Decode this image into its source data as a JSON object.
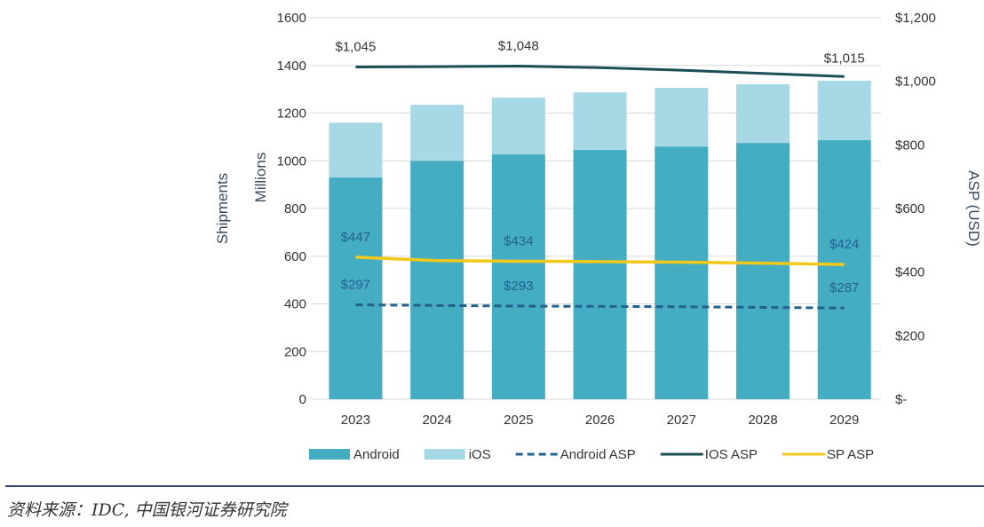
{
  "chart_data": {
    "type": "bar",
    "stacked": true,
    "categories": [
      "2023",
      "2024",
      "2025",
      "2026",
      "2027",
      "2028",
      "2029"
    ],
    "series": [
      {
        "name": "Android",
        "type": "bar",
        "axis": "left",
        "color": "#45adc2",
        "values": [
          930,
          1000,
          1027,
          1046,
          1060,
          1075,
          1087
        ]
      },
      {
        "name": "iOS",
        "type": "bar",
        "axis": "left",
        "color": "#a7d8e5",
        "values": [
          230,
          235,
          238,
          241,
          246,
          246,
          249
        ]
      },
      {
        "name": "Android ASP",
        "type": "line",
        "style": "dashed",
        "axis": "right",
        "color": "#22628f",
        "values": [
          297,
          295,
          293,
          292,
          291,
          289,
          287
        ]
      },
      {
        "name": "IOS ASP",
        "type": "line",
        "axis": "right",
        "color": "#1b4f55",
        "values": [
          1045,
          1046,
          1048,
          1043,
          1035,
          1025,
          1015
        ]
      },
      {
        "name": "SP ASP",
        "type": "line",
        "axis": "right",
        "color": "#f2c81a",
        "values": [
          447,
          436,
          434,
          433,
          431,
          428,
          424
        ]
      }
    ],
    "data_labels": [
      {
        "series": "IOS ASP",
        "category": "2023",
        "text": "$1,045"
      },
      {
        "series": "IOS ASP",
        "category": "2025",
        "text": "$1,048"
      },
      {
        "series": "IOS ASP",
        "category": "2029",
        "text": "$1,015"
      },
      {
        "series": "SP ASP",
        "category": "2023",
        "text": "$447"
      },
      {
        "series": "SP ASP",
        "category": "2025",
        "text": "$434"
      },
      {
        "series": "SP ASP",
        "category": "2029",
        "text": "$424"
      },
      {
        "series": "Android ASP",
        "category": "2023",
        "text": "$297"
      },
      {
        "series": "Android ASP",
        "category": "2025",
        "text": "$293"
      },
      {
        "series": "Android ASP",
        "category": "2029",
        "text": "$287"
      }
    ],
    "ylabel_left": [
      "Shipments",
      "Millions"
    ],
    "ylabel_right": "ASP (USD)",
    "ylim_left": [
      0,
      1600
    ],
    "yticks_left": [
      "0",
      "200",
      "400",
      "600",
      "800",
      "1000",
      "1200",
      "1400",
      "1600"
    ],
    "ylim_right": [
      0,
      1200
    ],
    "yticks_right": [
      "$-",
      "$200",
      "$400",
      "$600",
      "$800",
      "$1,000",
      "$1,200"
    ],
    "grid": true,
    "legend_position": "bottom"
  },
  "source": "资料来源：IDC, 中国银河证券研究院"
}
